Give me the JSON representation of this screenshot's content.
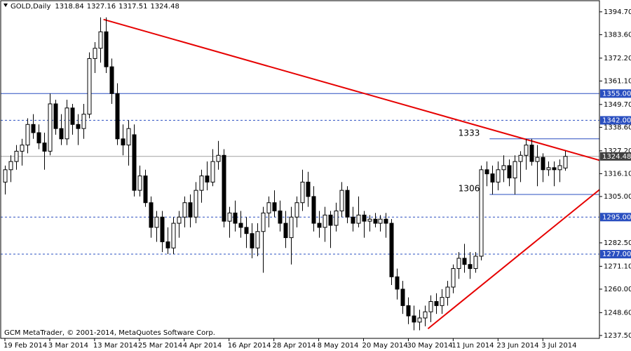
{
  "chart_data": {
    "type": "candlestick",
    "symbol": "GOLD,Daily",
    "footer": "GCM MetaTrader, © 2001-2014, MetaQuotes Software Corp.",
    "categories": [
      "19 Feb 2014",
      null,
      null,
      null,
      null,
      null,
      null,
      null,
      "3 Mar 2014",
      null,
      null,
      null,
      null,
      null,
      null,
      null,
      "13 Mar 2014",
      null,
      null,
      null,
      null,
      null,
      null,
      null,
      "25 Mar 2014",
      null,
      null,
      null,
      null,
      null,
      null,
      null,
      "4 Apr 2014",
      null,
      null,
      null,
      null,
      null,
      null,
      null,
      "16 Apr 2014",
      null,
      null,
      null,
      null,
      null,
      null,
      null,
      "28 Apr 2014",
      null,
      null,
      null,
      null,
      null,
      null,
      null,
      "8 May 2014",
      null,
      null,
      null,
      null,
      null,
      null,
      null,
      "20 May 2014",
      null,
      null,
      null,
      null,
      null,
      null,
      null,
      "30 May 2014",
      null,
      null,
      null,
      null,
      null,
      null,
      null,
      "11 Jun 2014",
      null,
      null,
      null,
      null,
      null,
      null,
      null,
      "23 Jun 2014",
      null,
      null,
      null,
      null,
      null,
      null,
      null,
      "3 Jul 2014",
      null,
      null,
      null,
      null
    ],
    "open": [
      1312,
      1318,
      1322,
      1327,
      1330,
      1340,
      1336,
      1331,
      1327,
      1350,
      1338,
      1333,
      1348,
      1340,
      1338,
      1345,
      1372,
      1377,
      1385,
      1368,
      1355,
      1333,
      1330,
      1335,
      1308,
      1315,
      1302,
      1290,
      1295,
      1283,
      1280,
      1292,
      1295,
      1302,
      1295,
      1308,
      1315,
      1312,
      1322,
      1325,
      1293,
      1297,
      1292,
      1290,
      1287,
      1280,
      1288,
      1297,
      1302,
      1298,
      1292,
      1285,
      1295,
      1302,
      1312,
      1305,
      1292,
      1290,
      1296,
      1291,
      1298,
      1308,
      1295,
      1292,
      1296,
      1293,
      1294,
      1292,
      1294,
      1292,
      1266,
      1260,
      1252,
      1247,
      1244,
      1246,
      1249,
      1254,
      1252,
      1256,
      1261,
      1270,
      1275,
      1272,
      1270,
      1276,
      1318,
      1316,
      1312,
      1318,
      1320,
      1314,
      1322,
      1325,
      1330,
      1322,
      1324,
      1318,
      1319,
      1318,
      1318.84
    ],
    "high": [
      1320,
      1325,
      1330,
      1333,
      1343,
      1345,
      1340,
      1336,
      1355,
      1352,
      1345,
      1352,
      1350,
      1345,
      1350,
      1375,
      1380,
      1392,
      1392,
      1372,
      1360,
      1340,
      1342,
      1340,
      1320,
      1318,
      1305,
      1298,
      1298,
      1290,
      1295,
      1298,
      1305,
      1306,
      1312,
      1318,
      1322,
      1328,
      1332,
      1328,
      1300,
      1303,
      1298,
      1295,
      1292,
      1292,
      1300,
      1305,
      1308,
      1303,
      1298,
      1300,
      1305,
      1318,
      1317,
      1310,
      1298,
      1300,
      1298,
      1302,
      1312,
      1310,
      1300,
      1305,
      1298,
      1296,
      1297,
      1296,
      1297,
      1294,
      1270,
      1264,
      1256,
      1252,
      1250,
      1252,
      1257,
      1258,
      1260,
      1264,
      1272,
      1278,
      1282,
      1278,
      1278,
      1320,
      1322,
      1320,
      1322,
      1325,
      1323,
      1325,
      1327,
      1333,
      1333,
      1330,
      1326,
      1322,
      1322,
      1323,
      1327.16
    ],
    "low": [
      1306,
      1312,
      1318,
      1320,
      1326,
      1333,
      1328,
      1318,
      1325,
      1335,
      1330,
      1330,
      1335,
      1330,
      1333,
      1343,
      1365,
      1370,
      1365,
      1350,
      1330,
      1325,
      1320,
      1305,
      1305,
      1300,
      1285,
      1283,
      1278,
      1277,
      1277,
      1285,
      1290,
      1290,
      1292,
      1302,
      1308,
      1310,
      1318,
      1290,
      1285,
      1288,
      1285,
      1280,
      1275,
      1276,
      1268,
      1290,
      1295,
      1288,
      1280,
      1272,
      1290,
      1298,
      1300,
      1288,
      1285,
      1283,
      1280,
      1288,
      1295,
      1292,
      1288,
      1290,
      1285,
      1288,
      1290,
      1288,
      1285,
      1262,
      1255,
      1248,
      1243,
      1240,
      1240,
      1242,
      1244,
      1248,
      1248,
      1252,
      1258,
      1265,
      1268,
      1265,
      1268,
      1274,
      1310,
      1306,
      1308,
      1312,
      1310,
      1306,
      1312,
      1318,
      1320,
      1310,
      1312,
      1315,
      1310,
      1312,
      1317.51
    ],
    "close": [
      1318,
      1322,
      1327,
      1330,
      1340,
      1336,
      1331,
      1327,
      1350,
      1338,
      1333,
      1348,
      1340,
      1338,
      1345,
      1372,
      1377,
      1385,
      1368,
      1355,
      1333,
      1330,
      1338,
      1308,
      1315,
      1302,
      1290,
      1295,
      1283,
      1280,
      1292,
      1295,
      1302,
      1295,
      1308,
      1315,
      1312,
      1322,
      1325,
      1293,
      1297,
      1292,
      1290,
      1287,
      1280,
      1288,
      1297,
      1302,
      1298,
      1292,
      1285,
      1295,
      1302,
      1312,
      1305,
      1292,
      1290,
      1296,
      1291,
      1298,
      1308,
      1295,
      1292,
      1296,
      1293,
      1294,
      1292,
      1294,
      1292,
      1266,
      1260,
      1252,
      1247,
      1244,
      1246,
      1249,
      1254,
      1252,
      1256,
      1261,
      1270,
      1275,
      1272,
      1270,
      1276,
      1318,
      1316,
      1312,
      1318,
      1320,
      1314,
      1322,
      1325,
      1330,
      1322,
      1324,
      1318,
      1319,
      1318,
      1320,
      1324.48
    ],
    "up_color": "#ffffff",
    "down_color": "#000000",
    "xlim": [
      -0.75,
      106.1
    ],
    "ylim": [
      1236.1,
      1400.1
    ],
    "yticks": [
      {
        "value": 1394.7,
        "label": "1394.70"
      },
      {
        "value": 1383.6,
        "label": "1383.60"
      },
      {
        "value": 1372.2,
        "label": "1372.20"
      },
      {
        "value": 1361.1,
        "label": "1361.10"
      },
      {
        "value": 1349.7,
        "label": "1349.70"
      },
      {
        "value": 1338.6,
        "label": "1338.60"
      },
      {
        "value": 1327.2,
        "label": "1327.20"
      },
      {
        "value": 1316.1,
        "label": "1316.10"
      },
      {
        "value": 1305,
        "label": "1305.00"
      },
      {
        "value": 1282.5,
        "label": "1282.50"
      },
      {
        "value": 1271.1,
        "label": "1271.10"
      },
      {
        "value": 1260,
        "label": "1260.00"
      },
      {
        "value": 1248.6,
        "label": "1248.60"
      },
      {
        "value": 1237.5,
        "label": "1237.50"
      }
    ],
    "levels": [
      {
        "value": 1355,
        "label": "1355.00",
        "style": "solid"
      },
      {
        "value": 1342,
        "label": "1342.00",
        "style": "dashed"
      },
      {
        "value": 1295,
        "label": "1295.00",
        "style": "dashed"
      },
      {
        "value": 1277,
        "label": "1277.00",
        "style": "dashed"
      }
    ],
    "level_color": "#2a4fc0",
    "annotations": [
      1333,
      1306
    ],
    "trendlines": [
      {
        "points": [
          [
            17.6,
            1391
          ],
          [
            106.1,
            1322.6
          ]
        ],
        "color": "#e60000"
      },
      {
        "points": [
          [
            75.5,
            1240.8
          ],
          [
            106.1,
            1308.3
          ]
        ],
        "color": "#e60000"
      }
    ]
  }
}
